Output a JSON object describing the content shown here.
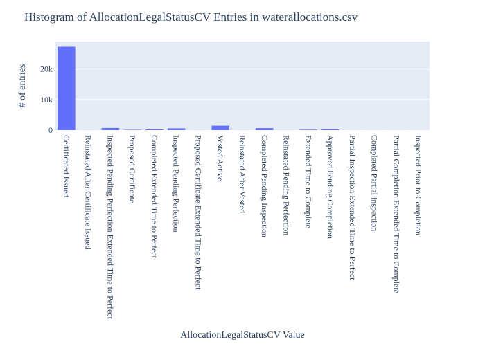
{
  "chart_data": {
    "type": "bar",
    "title": "Histogram of AllocationLegalStatusCV Entries in waterallocations.csv",
    "xlabel": "AllocationLegalStatusCV Value",
    "ylabel": "# of entries",
    "ylim": [
      0,
      29000
    ],
    "yticks": [
      0,
      10000,
      20000
    ],
    "ytick_labels": [
      "0",
      "10k",
      "20k"
    ],
    "grid": true,
    "categories": [
      "Certificated Issued",
      "Reinstated After Certificate Issued",
      "Inspected Pending Perfection Extended Time to Perfect",
      "Proposed Certificate",
      "Completed Extended Time to Perfect",
      "Inspected Pending Perfection",
      "Proposed Certificate Extended Time to Perfect",
      "Vested Active",
      "Reinstated After Vested",
      "Completed Pending Inspection",
      "Reinstated Pending Perfection",
      "Extended Time to Complete",
      "Approved Pending Completion",
      "Partial Inspection Extended Time to Perfect",
      "Completed Partial inspection",
      "Partial Completion Extended Time to Complete",
      "Inspected Prior to Completion"
    ],
    "values": [
      27300,
      20,
      700,
      120,
      250,
      600,
      20,
      1450,
      20,
      650,
      20,
      150,
      250,
      10,
      10,
      10,
      10
    ]
  },
  "colors": {
    "bar": "#636efa",
    "plot_bg": "#e5ecf6",
    "grid": "#ffffff",
    "text": "#2a3f5f"
  }
}
